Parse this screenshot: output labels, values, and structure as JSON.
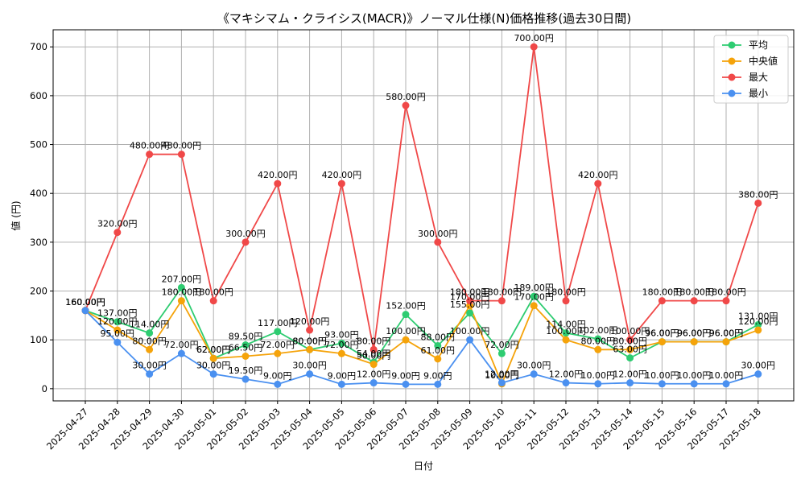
{
  "chart_data": {
    "type": "line",
    "title": "《マキシマム・クライシス(MACR)》ノーマル仕様(N)価格推移(過去30日間)",
    "xlabel": "日付",
    "ylabel": "値 (円)",
    "ylim": [
      -25,
      735
    ],
    "yticks": [
      0,
      100,
      200,
      300,
      400,
      500,
      600,
      700
    ],
    "grid": true,
    "legend_position": "top-right",
    "value_suffix": "円",
    "categories": [
      "2025-04-27",
      "2025-04-28",
      "2025-04-29",
      "2025-04-30",
      "2025-05-01",
      "2025-05-02",
      "2025-05-03",
      "2025-05-04",
      "2025-05-05",
      "2025-05-06",
      "2025-05-07",
      "2025-05-08",
      "2025-05-09",
      "2025-05-10",
      "2025-05-11",
      "2025-05-12",
      "2025-05-13",
      "2025-05-14",
      "2025-05-15",
      "2025-05-16",
      "2025-05-17",
      "2025-05-18"
    ],
    "series": [
      {
        "name": "平均",
        "color": "#2ecc71",
        "values": [
          160,
          137,
          114,
          207,
          62,
          89.5,
          117,
          80,
          93,
          54,
          152,
          88,
          155,
          72,
          189,
          114,
          102,
          63,
          96,
          96,
          96,
          131
        ]
      },
      {
        "name": "中央値",
        "color": "#f5a30a",
        "values": [
          160,
          120,
          80,
          180,
          62,
          66.5,
          72,
          80,
          72,
          50,
          100,
          61,
          170,
          10,
          170,
          100,
          80,
          80,
          96,
          96,
          96,
          120
        ]
      },
      {
        "name": "最大",
        "color": "#f04848",
        "values": [
          160,
          320,
          480,
          480,
          180,
          300,
          420,
          120,
          420,
          80,
          580,
          300,
          180,
          180,
          700,
          180,
          420,
          100,
          180,
          180,
          180,
          380
        ]
      },
      {
        "name": "最小",
        "color": "#4a90f0",
        "values": [
          160,
          95,
          30,
          72,
          30,
          19.5,
          9,
          30,
          9,
          12,
          9,
          9,
          100,
          12,
          30,
          12,
          10,
          12,
          10,
          10,
          10,
          30
        ]
      }
    ]
  }
}
